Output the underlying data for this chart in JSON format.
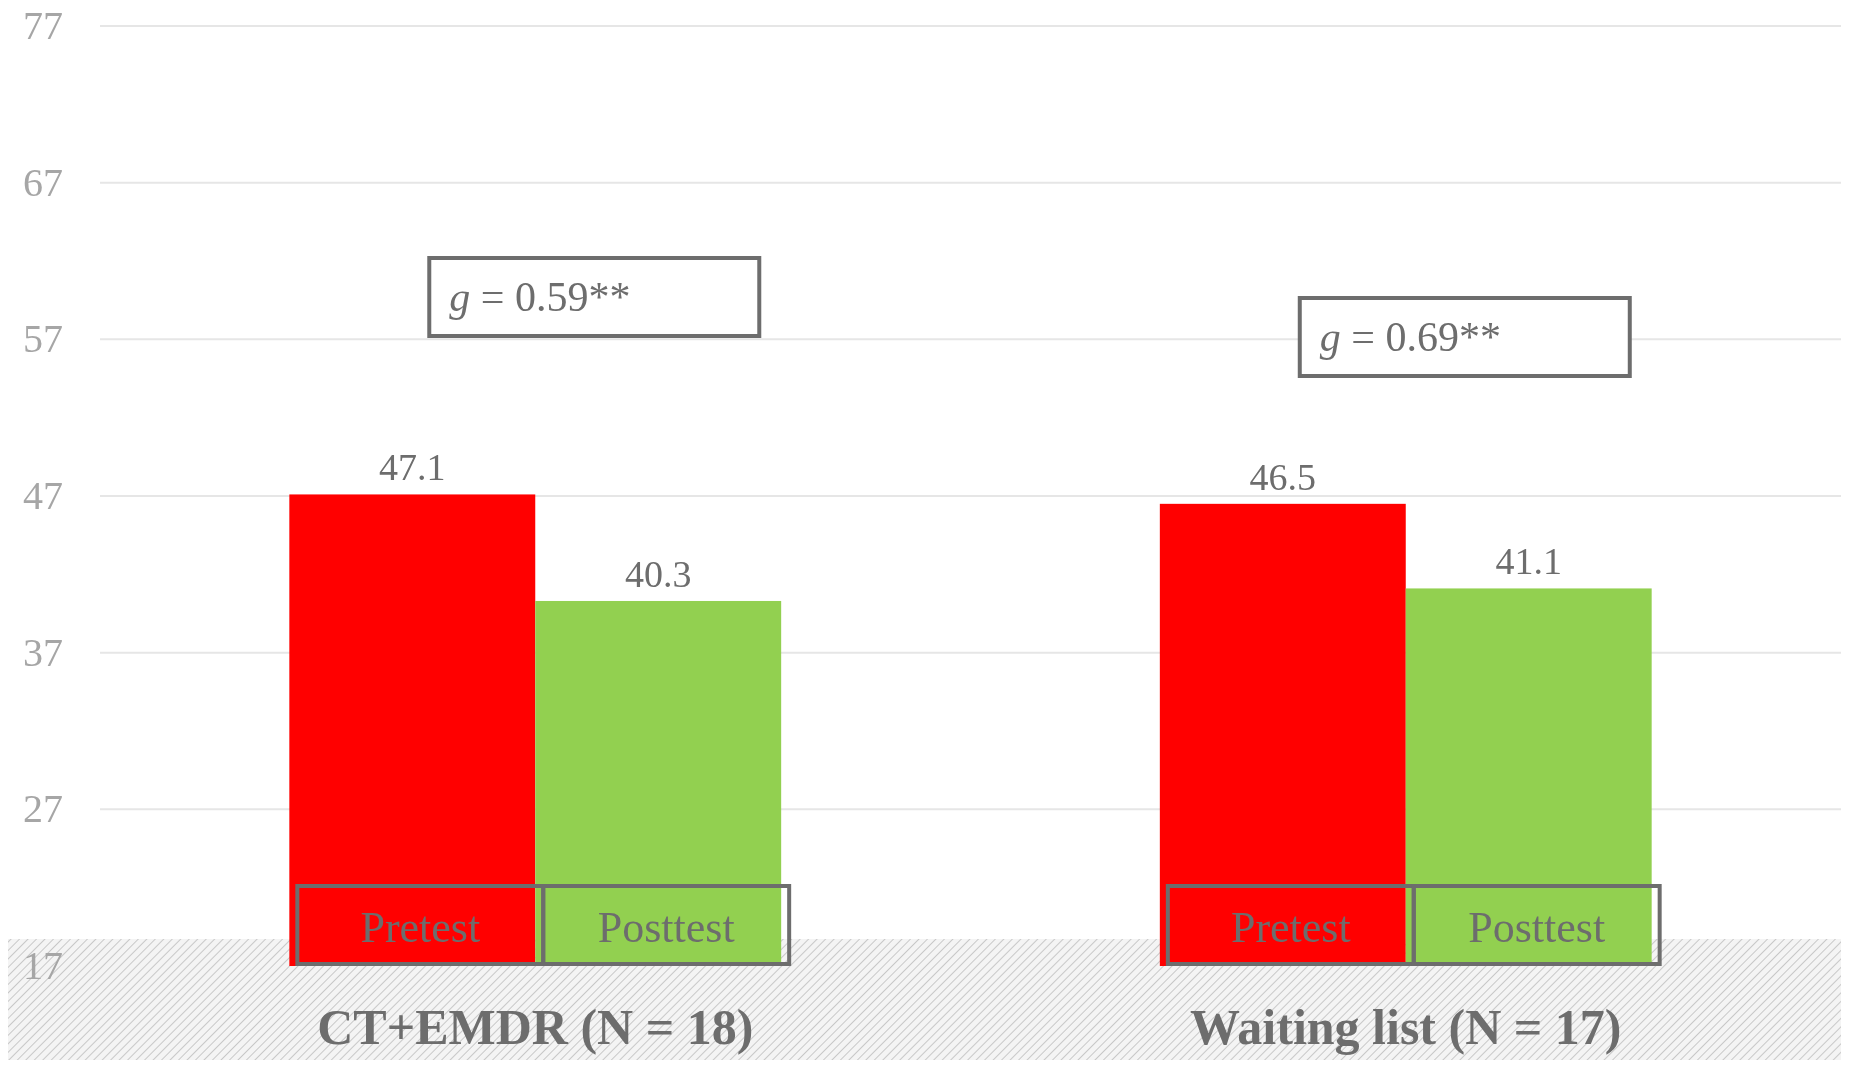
{
  "chart_data": {
    "type": "bar",
    "categories": [
      "CT+EMDR (N = 18)",
      "Waiting list (N = 17)"
    ],
    "series": [
      {
        "name": "Pretest",
        "color": "#ff0000",
        "values": [
          47.1,
          46.5
        ]
      },
      {
        "name": "Posttest",
        "color": "#92d050",
        "values": [
          40.3,
          41.1
        ]
      }
    ],
    "ylim": [
      17,
      77
    ],
    "yticks": [
      17,
      27,
      37,
      47,
      57,
      67,
      77
    ],
    "grid": "y",
    "legend": false,
    "data_labels": true,
    "annotations": [
      "g = 0.59**",
      "g = 0.69**"
    ]
  }
}
